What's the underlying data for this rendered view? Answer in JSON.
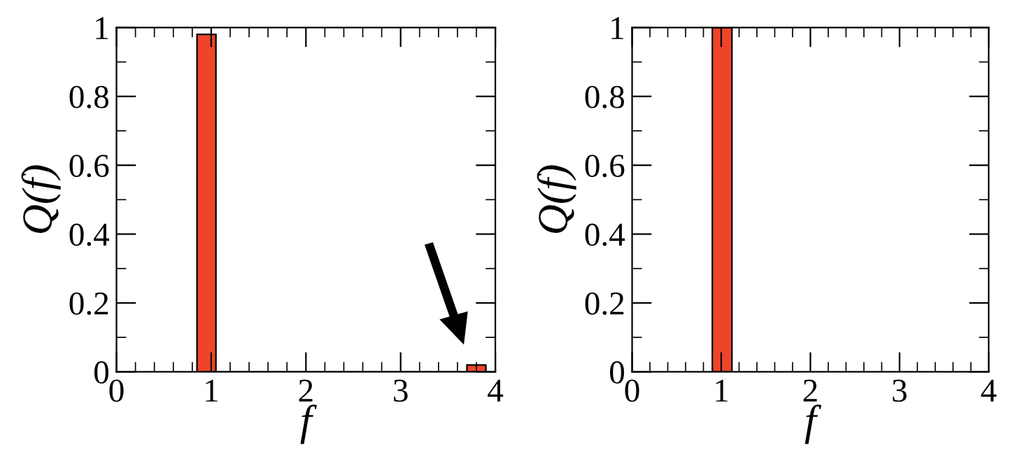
{
  "chart_data": [
    {
      "type": "histogram",
      "xlabel": "f",
      "ylabel": "Q(f)",
      "bins": [
        0.85,
        1.05,
        3.7,
        3.9
      ],
      "values": [
        0.98,
        0,
        0.02
      ],
      "color": "#ee4529",
      "xlim": [
        0,
        4
      ],
      "xticks": [
        0,
        1,
        2,
        3,
        4
      ],
      "ylim": [
        0,
        1
      ],
      "yticks": [
        0,
        0.2,
        0.4,
        0.6,
        0.8,
        1
      ],
      "grid": false,
      "legend": false
    },
    {
      "type": "histogram",
      "xlabel": "f",
      "ylabel": "Q(f)",
      "bins": [
        0.9,
        1.12
      ],
      "values": [
        1
      ],
      "color": "#ee4529",
      "xlim": [
        0,
        4
      ],
      "xticks": [
        0,
        1,
        2,
        3,
        4
      ],
      "ylim": [
        0,
        1
      ],
      "yticks": [
        0,
        0.2,
        0.4,
        0.6,
        0.8,
        1
      ],
      "grid": false,
      "legend": false
    }
  ]
}
